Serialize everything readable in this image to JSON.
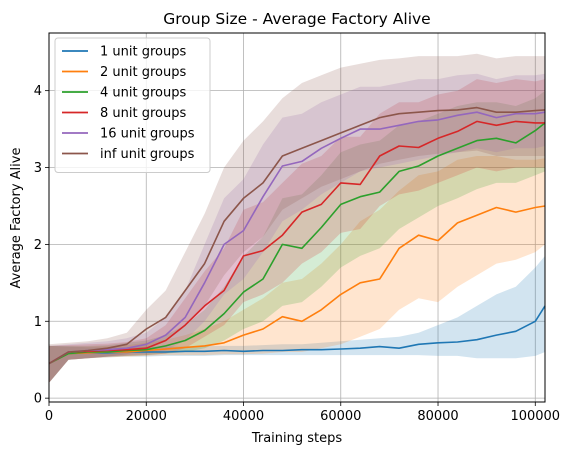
{
  "chart_data": {
    "type": "line",
    "title": "Group Size - Average Factory Alive",
    "xlabel": "Training steps",
    "ylabel": "Average Factory Alive",
    "xlim": [
      0,
      102000
    ],
    "ylim": [
      -0.05,
      4.75
    ],
    "xticks": [
      0,
      20000,
      40000,
      60000,
      80000,
      100000
    ],
    "yticks": [
      0,
      1,
      2,
      3,
      4
    ],
    "grid": true,
    "legend_position": "top-left",
    "x": [
      0,
      4000,
      8000,
      12000,
      16000,
      20000,
      24000,
      28000,
      32000,
      36000,
      40000,
      44000,
      48000,
      52000,
      56000,
      60000,
      64000,
      68000,
      72000,
      76000,
      80000,
      84000,
      88000,
      92000,
      96000,
      100000,
      102000
    ],
    "series": [
      {
        "name": "1 unit groups",
        "color": "#1f77b4",
        "values": [
          0.45,
          0.58,
          0.59,
          0.59,
          0.6,
          0.6,
          0.6,
          0.61,
          0.61,
          0.62,
          0.61,
          0.62,
          0.62,
          0.63,
          0.63,
          0.64,
          0.65,
          0.67,
          0.65,
          0.7,
          0.72,
          0.73,
          0.76,
          0.82,
          0.87,
          1.0,
          1.2
        ],
        "lower": [
          0.2,
          0.5,
          0.52,
          0.53,
          0.54,
          0.54,
          0.55,
          0.55,
          0.55,
          0.56,
          0.56,
          0.56,
          0.56,
          0.56,
          0.56,
          0.56,
          0.56,
          0.56,
          0.56,
          0.56,
          0.55,
          0.55,
          0.52,
          0.52,
          0.52,
          0.55,
          0.6
        ],
        "upper": [
          0.68,
          0.67,
          0.66,
          0.66,
          0.66,
          0.67,
          0.67,
          0.67,
          0.68,
          0.68,
          0.68,
          0.69,
          0.7,
          0.7,
          0.72,
          0.74,
          0.76,
          0.78,
          0.8,
          0.85,
          0.95,
          1.05,
          1.2,
          1.35,
          1.45,
          1.7,
          1.85
        ]
      },
      {
        "name": "2 unit groups",
        "color": "#ff7f0e",
        "values": [
          0.45,
          0.58,
          0.59,
          0.6,
          0.6,
          0.62,
          0.64,
          0.66,
          0.68,
          0.72,
          0.82,
          0.9,
          1.06,
          1.0,
          1.15,
          1.35,
          1.5,
          1.55,
          1.95,
          2.12,
          2.05,
          2.28,
          2.38,
          2.48,
          2.42,
          2.48,
          2.5
        ],
        "lower": [
          0.2,
          0.5,
          0.52,
          0.53,
          0.54,
          0.55,
          0.56,
          0.56,
          0.56,
          0.57,
          0.57,
          0.58,
          0.6,
          0.6,
          0.65,
          0.7,
          0.8,
          0.9,
          1.15,
          1.3,
          1.25,
          1.45,
          1.6,
          1.75,
          1.8,
          1.9,
          2.0
        ],
        "upper": [
          0.68,
          0.67,
          0.67,
          0.68,
          0.69,
          0.72,
          0.76,
          0.82,
          0.9,
          1.0,
          1.15,
          1.3,
          1.5,
          1.55,
          1.75,
          2.0,
          2.3,
          2.45,
          2.7,
          2.9,
          2.95,
          3.1,
          3.15,
          3.15,
          3.1,
          3.1,
          3.12
        ]
      },
      {
        "name": "4 unit groups",
        "color": "#2ca02c",
        "values": [
          0.45,
          0.58,
          0.6,
          0.6,
          0.62,
          0.63,
          0.68,
          0.75,
          0.88,
          1.1,
          1.38,
          1.55,
          2.0,
          1.95,
          2.22,
          2.52,
          2.62,
          2.68,
          2.95,
          3.02,
          3.15,
          3.25,
          3.35,
          3.38,
          3.32,
          3.48,
          3.58
        ],
        "lower": [
          0.2,
          0.5,
          0.52,
          0.54,
          0.55,
          0.56,
          0.58,
          0.6,
          0.65,
          0.75,
          0.9,
          1.0,
          1.2,
          1.25,
          1.45,
          1.7,
          1.85,
          1.95,
          2.2,
          2.35,
          2.5,
          2.6,
          2.72,
          2.8,
          2.8,
          2.9,
          2.95
        ],
        "upper": [
          0.68,
          0.68,
          0.68,
          0.69,
          0.72,
          0.75,
          0.82,
          0.95,
          1.15,
          1.45,
          1.85,
          2.1,
          2.6,
          2.65,
          2.9,
          3.2,
          3.3,
          3.35,
          3.55,
          3.6,
          3.7,
          3.8,
          3.85,
          3.85,
          3.8,
          3.9,
          4.0
        ]
      },
      {
        "name": "8 unit groups",
        "color": "#d62728",
        "values": [
          0.45,
          0.6,
          0.61,
          0.62,
          0.63,
          0.65,
          0.75,
          0.95,
          1.2,
          1.4,
          1.85,
          1.92,
          2.12,
          2.42,
          2.52,
          2.8,
          2.78,
          3.15,
          3.28,
          3.26,
          3.38,
          3.47,
          3.6,
          3.55,
          3.6,
          3.58,
          3.58
        ],
        "lower": [
          0.2,
          0.5,
          0.52,
          0.54,
          0.55,
          0.56,
          0.58,
          0.65,
          0.8,
          0.95,
          1.25,
          1.35,
          1.5,
          1.75,
          1.9,
          2.15,
          2.2,
          2.5,
          2.65,
          2.7,
          2.8,
          2.9,
          3.0,
          2.95,
          3.0,
          3.0,
          3.0
        ],
        "upper": [
          0.68,
          0.69,
          0.7,
          0.71,
          0.73,
          0.78,
          0.95,
          1.3,
          1.65,
          1.95,
          2.45,
          2.55,
          2.8,
          3.05,
          3.15,
          3.4,
          3.4,
          3.7,
          3.85,
          3.85,
          3.95,
          4.0,
          4.15,
          4.1,
          4.15,
          4.12,
          4.15
        ]
      },
      {
        "name": "16 unit groups",
        "color": "#9467bd",
        "values": [
          0.45,
          0.6,
          0.62,
          0.63,
          0.65,
          0.7,
          0.82,
          1.05,
          1.5,
          2.0,
          2.18,
          2.62,
          3.02,
          3.08,
          3.25,
          3.38,
          3.5,
          3.5,
          3.55,
          3.6,
          3.62,
          3.68,
          3.72,
          3.65,
          3.7,
          3.7,
          3.72
        ],
        "lower": [
          0.2,
          0.5,
          0.52,
          0.54,
          0.56,
          0.58,
          0.62,
          0.75,
          1.0,
          1.35,
          1.55,
          1.9,
          2.3,
          2.45,
          2.65,
          2.8,
          2.95,
          3.0,
          3.05,
          3.1,
          3.15,
          3.2,
          3.25,
          3.2,
          3.25,
          3.25,
          3.28
        ],
        "upper": [
          0.68,
          0.7,
          0.72,
          0.74,
          0.78,
          0.85,
          1.05,
          1.4,
          2.0,
          2.6,
          2.85,
          3.3,
          3.65,
          3.7,
          3.85,
          3.95,
          4.05,
          4.05,
          4.1,
          4.15,
          4.15,
          4.2,
          4.22,
          4.15,
          4.2,
          4.2,
          4.22
        ]
      },
      {
        "name": "inf unit groups",
        "color": "#8c564b",
        "values": [
          0.45,
          0.6,
          0.62,
          0.65,
          0.7,
          0.9,
          1.05,
          1.4,
          1.75,
          2.3,
          2.6,
          2.8,
          3.15,
          3.25,
          3.35,
          3.45,
          3.55,
          3.65,
          3.7,
          3.72,
          3.74,
          3.75,
          3.78,
          3.72,
          3.72,
          3.74,
          3.75
        ],
        "lower": [
          0.2,
          0.5,
          0.52,
          0.54,
          0.57,
          0.65,
          0.75,
          0.95,
          1.2,
          1.6,
          1.9,
          2.1,
          2.45,
          2.6,
          2.75,
          2.85,
          2.95,
          3.05,
          3.1,
          3.15,
          3.18,
          3.2,
          3.22,
          3.15,
          3.15,
          3.15,
          3.15
        ],
        "upper": [
          0.7,
          0.72,
          0.74,
          0.78,
          0.85,
          1.15,
          1.4,
          1.9,
          2.4,
          3.0,
          3.35,
          3.6,
          3.9,
          4.1,
          4.2,
          4.3,
          4.35,
          4.4,
          4.42,
          4.45,
          4.45,
          4.45,
          4.48,
          4.42,
          4.45,
          4.45,
          4.45
        ]
      }
    ]
  }
}
